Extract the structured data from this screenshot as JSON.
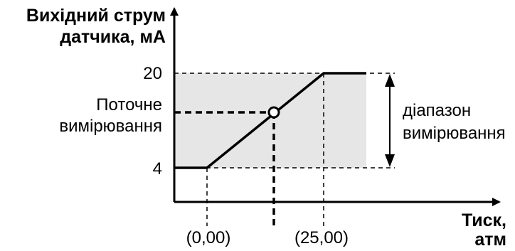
{
  "y_axis_label": [
    "Вихідний струм",
    "датчика, мА"
  ],
  "x_axis_label": [
    "Тиск,",
    "атм"
  ],
  "y_ticks": [
    "20",
    "4"
  ],
  "x_ticks": [
    "(0,00)",
    "(25,00)"
  ],
  "current_measurement_label": [
    "Поточне",
    "вимірювання"
  ],
  "range_label": [
    "діапазон",
    "вимірювання"
  ],
  "colors": {
    "range_fill": "#e6e6e6",
    "line": "#000000",
    "marker_fill": "#ffffff"
  }
}
